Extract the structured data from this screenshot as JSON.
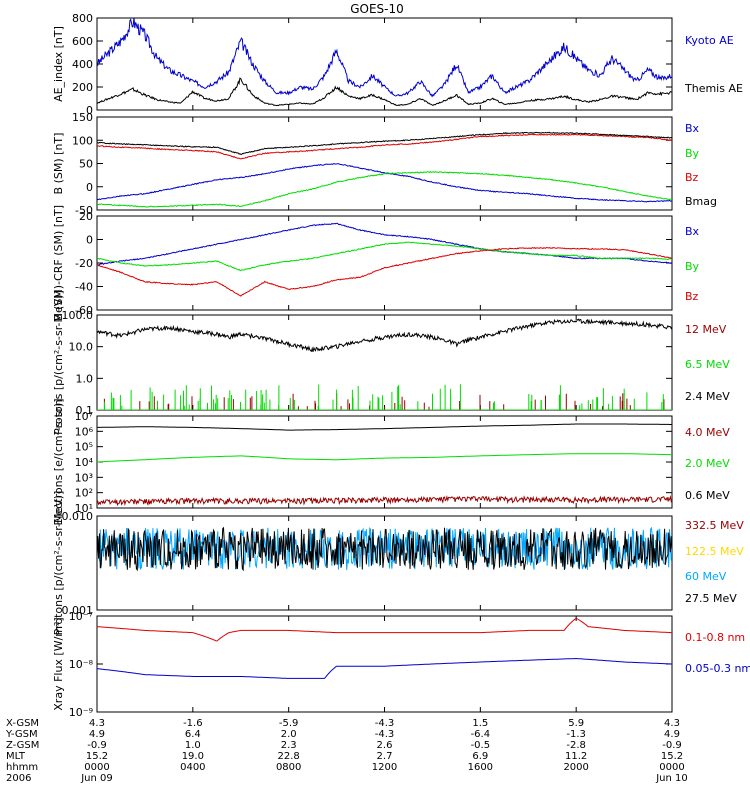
{
  "title": "GOES-10",
  "colors": {
    "black": "#000000",
    "blue": "#0000cc",
    "green": "#00dd00",
    "red": "#dd0000",
    "darkred": "#990000",
    "cyan": "#00a8ff",
    "yellow": "#ffd700"
  },
  "chart_data": [
    {
      "type": "line",
      "ylabel": "AE_index [nT]",
      "ylim": [
        0,
        800
      ],
      "yscale": "linear",
      "yticks": [
        "0",
        "200",
        "400",
        "600",
        "800"
      ],
      "series": [
        {
          "name": "Kyoto AE",
          "color": "blue",
          "x": [
            0,
            1,
            1.5,
            2,
            2.5,
            3,
            3.5,
            4,
            4.5,
            5,
            5.5,
            6,
            6.5,
            7,
            7.5,
            8,
            8.5,
            9,
            9.5,
            10,
            10.5,
            11,
            11.5,
            12,
            12.5,
            13,
            13.5,
            14,
            14.5,
            15,
            15.5,
            16,
            16.5,
            17,
            17.5,
            18,
            18.5,
            19,
            19.5,
            20,
            20.5,
            21,
            21.5,
            22,
            22.5,
            23,
            23.5,
            24
          ],
          "y": [
            400,
            600,
            770,
            650,
            450,
            350,
            300,
            250,
            200,
            250,
            330,
            600,
            400,
            250,
            150,
            150,
            200,
            180,
            300,
            520,
            250,
            200,
            300,
            200,
            120,
            150,
            250,
            120,
            220,
            400,
            150,
            200,
            300,
            150,
            200,
            250,
            350,
            450,
            550,
            450,
            350,
            300,
            450,
            350,
            250,
            350,
            270,
            300
          ]
        },
        {
          "name": "Themis AE",
          "color": "black",
          "x": [
            0,
            1,
            1.5,
            2,
            2.5,
            3,
            3.5,
            4,
            4.5,
            5,
            5.5,
            6,
            6.5,
            7,
            7.5,
            8,
            8.5,
            9,
            9.5,
            10,
            10.5,
            11,
            11.5,
            12,
            12.5,
            13,
            13.5,
            14,
            14.5,
            15,
            15.5,
            16,
            16.5,
            17,
            17.5,
            18,
            18.5,
            19,
            19.5,
            20,
            20.5,
            21,
            21.5,
            22,
            22.5,
            23,
            23.5,
            24
          ],
          "y": [
            60,
            140,
            180,
            130,
            90,
            70,
            60,
            160,
            100,
            80,
            100,
            270,
            130,
            60,
            40,
            50,
            60,
            50,
            110,
            200,
            120,
            100,
            130,
            90,
            40,
            50,
            100,
            40,
            80,
            130,
            50,
            60,
            100,
            50,
            60,
            80,
            90,
            100,
            120,
            90,
            70,
            90,
            120,
            110,
            90,
            150,
            140,
            150
          ]
        }
      ]
    },
    {
      "type": "line",
      "ylabel": "B (SM) [nT]",
      "ylim": [
        -50,
        150
      ],
      "yscale": "linear",
      "yticks": [
        "-50",
        "0",
        "50",
        "100",
        "150"
      ],
      "series": [
        {
          "name": "Bx",
          "color": "blue",
          "x": [
            0,
            1,
            2,
            3,
            4,
            5,
            6,
            7,
            8,
            9,
            10,
            11,
            12,
            13,
            14,
            15,
            16,
            17,
            18,
            19,
            20,
            21,
            22,
            23,
            24
          ],
          "y": [
            -28,
            -20,
            -15,
            -5,
            5,
            15,
            20,
            28,
            38,
            45,
            50,
            40,
            30,
            22,
            10,
            0,
            -8,
            -12,
            -15,
            -20,
            -25,
            -28,
            -30,
            -32,
            -30
          ]
        },
        {
          "name": "By",
          "color": "green",
          "x": [
            0,
            1,
            2,
            3,
            4,
            5,
            6,
            7,
            8,
            9,
            10,
            11,
            12,
            13,
            14,
            15,
            16,
            17,
            18,
            19,
            20,
            21,
            22,
            23,
            24
          ],
          "y": [
            -37,
            -40,
            -43,
            -42,
            -40,
            -38,
            -42,
            -30,
            -15,
            -5,
            10,
            20,
            28,
            30,
            32,
            30,
            28,
            25,
            20,
            15,
            8,
            0,
            -10,
            -20,
            -28
          ]
        },
        {
          "name": "Bz",
          "color": "red",
          "x": [
            0,
            1,
            2,
            3,
            4,
            5,
            6,
            7,
            8,
            9,
            10,
            11,
            12,
            13,
            14,
            15,
            16,
            17,
            18,
            19,
            20,
            21,
            22,
            23,
            24
          ],
          "y": [
            88,
            85,
            83,
            80,
            78,
            75,
            60,
            72,
            75,
            78,
            82,
            85,
            90,
            92,
            96,
            102,
            108,
            110,
            112,
            112,
            112,
            110,
            108,
            106,
            100
          ]
        },
        {
          "name": "Bmag",
          "color": "black",
          "x": [
            0,
            1,
            2,
            3,
            4,
            5,
            6,
            7,
            8,
            9,
            10,
            11,
            12,
            13,
            14,
            15,
            16,
            17,
            18,
            19,
            20,
            21,
            22,
            23,
            24
          ],
          "y": [
            95,
            92,
            90,
            88,
            86,
            85,
            70,
            82,
            85,
            88,
            92,
            95,
            98,
            100,
            104,
            108,
            112,
            115,
            116,
            116,
            115,
            113,
            110,
            108,
            105
          ]
        }
      ]
    },
    {
      "type": "line",
      "ylabel": "B (SM)-CRF (SM) [nT]",
      "ylim": [
        -60,
        40
      ],
      "yscale": "linear",
      "yticks": [
        "-60",
        "-40",
        "-20",
        "0",
        "20"
      ],
      "series": [
        {
          "name": "Bx",
          "color": "blue",
          "x": [
            0,
            1,
            2,
            3,
            4,
            5,
            6,
            7,
            8,
            9,
            10,
            11,
            12,
            13,
            14,
            15,
            16,
            17,
            18,
            19,
            20,
            21,
            22,
            23,
            24
          ],
          "y": [
            -12,
            -8,
            -5,
            0,
            5,
            10,
            15,
            20,
            25,
            30,
            32,
            25,
            20,
            18,
            15,
            10,
            5,
            2,
            0,
            -2,
            -5,
            -5,
            -5,
            -8,
            -10
          ]
        },
        {
          "name": "By",
          "color": "green",
          "x": [
            0,
            1,
            2,
            3,
            4,
            5,
            6,
            7,
            8,
            9,
            10,
            11,
            12,
            13,
            14,
            15,
            16,
            17,
            18,
            19,
            20,
            21,
            22,
            23,
            24
          ],
          "y": [
            -5,
            -10,
            -13,
            -12,
            -10,
            -8,
            -18,
            -12,
            -8,
            -5,
            0,
            5,
            10,
            12,
            10,
            8,
            5,
            2,
            0,
            -2,
            -2,
            -5,
            -5,
            -5,
            -6
          ]
        },
        {
          "name": "Bz",
          "color": "red",
          "x": [
            0,
            1,
            2,
            3,
            4,
            5,
            6,
            7,
            8,
            9,
            10,
            11,
            12,
            13,
            14,
            15,
            16,
            17,
            18,
            19,
            20,
            21,
            22,
            23,
            24
          ],
          "y": [
            -12,
            -20,
            -30,
            -32,
            -33,
            -30,
            -45,
            -30,
            -38,
            -35,
            -28,
            -25,
            -15,
            -10,
            -5,
            0,
            3,
            5,
            6,
            6,
            5,
            5,
            4,
            0,
            -5
          ]
        }
      ]
    },
    {
      "type": "line",
      "ylabel": "Protons [p/(cm²-s-sr-MeV)]",
      "ylim": [
        0.1,
        100
      ],
      "yscale": "log",
      "yticks": [
        "0.1",
        "1.0",
        "10.0",
        "100.0"
      ],
      "series": [
        {
          "name": "12 MeV",
          "color": "darkred",
          "x": [
            0,
            24
          ],
          "y": [
            0.1,
            0.1
          ]
        },
        {
          "name": "6.5 MeV",
          "color": "green",
          "x": [
            0,
            24
          ],
          "y": [
            0.1,
            0.1
          ]
        },
        {
          "name": "2.4 MeV",
          "color": "black",
          "x": [
            0,
            1,
            2,
            3,
            4,
            5,
            5.5,
            6,
            7,
            8,
            9,
            10,
            11,
            12,
            13,
            14,
            15,
            16,
            17,
            18,
            19,
            20,
            21,
            22,
            23,
            24
          ],
          "y": [
            30,
            22,
            35,
            40,
            30,
            25,
            20,
            25,
            18,
            12,
            8,
            10,
            15,
            20,
            25,
            20,
            12,
            20,
            30,
            45,
            60,
            65,
            60,
            55,
            50,
            40
          ]
        }
      ]
    },
    {
      "type": "line",
      "ylabel": "Electrons [e/(cm²-s-sr)]",
      "ylim": [
        10,
        10000000
      ],
      "yscale": "log",
      "yticks": [
        "10¹",
        "10²",
        "10³",
        "10⁴",
        "10⁵",
        "10⁶",
        "10⁷"
      ],
      "series": [
        {
          "name": "4.0 MeV",
          "color": "darkred",
          "x": [
            0,
            4,
            8,
            12,
            16,
            20,
            24
          ],
          "y": [
            25,
            30,
            30,
            35,
            40,
            35,
            40
          ]
        },
        {
          "name": "2.0 MeV",
          "color": "green",
          "x": [
            0,
            2,
            4,
            6,
            8,
            10,
            12,
            14,
            16,
            18,
            20,
            22,
            24
          ],
          "y": [
            10000,
            14000,
            20000,
            25000,
            16000,
            14000,
            18000,
            20000,
            25000,
            30000,
            35000,
            35000,
            30000
          ]
        },
        {
          "name": "0.6 MeV",
          "color": "black",
          "x": [
            0,
            2,
            4,
            6,
            8,
            10,
            12,
            14,
            16,
            18,
            20,
            22,
            24
          ],
          "y": [
            1800000,
            2000000,
            1800000,
            1500000,
            1200000,
            1300000,
            1500000,
            1800000,
            2200000,
            2500000,
            3000000,
            3000000,
            2800000
          ]
        }
      ]
    },
    {
      "type": "line",
      "ylabel": "Protons [p/(cm²-s-sr-MeV)]",
      "ylim": [
        0.001,
        0.1
      ],
      "yscale": "log",
      "yticks": [
        "0.001",
        "0.010"
      ],
      "series": [
        {
          "name": "332.5 MeV",
          "color": "darkred",
          "x": [],
          "y": []
        },
        {
          "name": "122.5 MeV",
          "color": "yellow",
          "x": [],
          "y": []
        },
        {
          "name": "60 MeV",
          "color": "cyan",
          "x": [
            0,
            24
          ],
          "y": [
            0.02,
            0.02
          ]
        },
        {
          "name": "27.5 MeV",
          "color": "black",
          "x": [
            0,
            24
          ],
          "y": [
            0.02,
            0.02
          ]
        }
      ]
    },
    {
      "type": "line",
      "ylabel": "Xray Flux [W/m²]",
      "ylim": [
        1e-09,
        1e-07
      ],
      "yscale": "log",
      "yticks": [
        "10⁻⁹",
        "10⁻⁸",
        "10⁻⁷"
      ],
      "series": [
        {
          "name": "0.1-0.8 nm",
          "color": "red",
          "x": [
            0,
            2,
            4,
            5,
            5.5,
            6,
            8,
            10,
            12,
            14,
            16,
            18,
            19.5,
            20,
            20.5,
            22,
            24
          ],
          "y": [
            6e-08,
            5e-08,
            4.5e-08,
            3e-08,
            4.5e-08,
            5e-08,
            5e-08,
            4.5e-08,
            4.5e-08,
            4.5e-08,
            4.5e-08,
            5e-08,
            5e-08,
            9e-08,
            6e-08,
            5e-08,
            4.5e-08
          ]
        },
        {
          "name": "0.05-0.3 nm",
          "color": "blue",
          "x": [
            0,
            2,
            4,
            6,
            8,
            9.5,
            10,
            12,
            14,
            16,
            18,
            20,
            22,
            24
          ],
          "y": [
            8e-09,
            6e-09,
            5.5e-09,
            5.5e-09,
            5e-09,
            5e-09,
            9e-09,
            9e-09,
            1e-08,
            1.1e-08,
            1.2e-08,
            1.3e-08,
            1.1e-08,
            1e-08
          ]
        }
      ]
    }
  ],
  "x_axis": {
    "xlim": [
      0,
      24
    ],
    "tick_hours": [
      0,
      4,
      8,
      12,
      16,
      20,
      24
    ],
    "row_labels": [
      "X-GSM",
      "Y-GSM",
      "Z-GSM",
      "MLT",
      "hhmm",
      "2006"
    ],
    "columns": [
      [
        "4.3",
        "4.9",
        "-0.9",
        "15.2",
        "0000",
        "Jun 09"
      ],
      [
        "-1.6",
        "6.4",
        "1.0",
        "19.0",
        "0400",
        ""
      ],
      [
        "-5.9",
        "2.0",
        "2.3",
        "22.8",
        "0800",
        ""
      ],
      [
        "-4.3",
        "-4.3",
        "2.6",
        "2.7",
        "1200",
        ""
      ],
      [
        "1.5",
        "-6.4",
        "-0.5",
        "6.9",
        "1600",
        ""
      ],
      [
        "5.9",
        "-1.3",
        "-2.8",
        "11.2",
        "2000",
        ""
      ],
      [
        "4.3",
        "4.9",
        "-0.9",
        "15.2",
        "0000",
        "Jun 10"
      ]
    ]
  }
}
